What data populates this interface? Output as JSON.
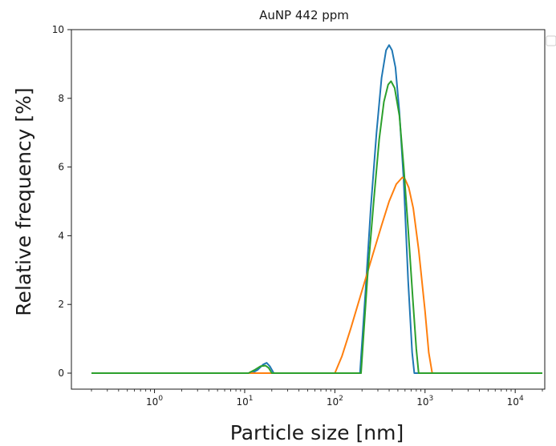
{
  "chart_data": {
    "type": "line",
    "title": "AuNP 442 ppm",
    "xlabel": "Particle size [nm]",
    "ylabel": "Relative frequency [%]",
    "x_scale": "log",
    "xlim": [
      0.2,
      20000
    ],
    "ylim": [
      0,
      10
    ],
    "x_ticks": [
      {
        "value": 1,
        "base": "10",
        "exp": "0"
      },
      {
        "value": 10,
        "base": "10",
        "exp": "1"
      },
      {
        "value": 100,
        "base": "10",
        "exp": "2"
      },
      {
        "value": 1000,
        "base": "10",
        "exp": "3"
      },
      {
        "value": 10000,
        "base": "10",
        "exp": "4"
      }
    ],
    "y_ticks": [
      0,
      2,
      4,
      6,
      8,
      10
    ],
    "grid": false,
    "legend": "top-right (empty)",
    "series": [
      {
        "color": "#1f77b4",
        "x": [
          0.2,
          12,
          14,
          16,
          17.5,
          19,
          21,
          190,
          220,
          250,
          290,
          330,
          370,
          400,
          430,
          470,
          520,
          580,
          650,
          720,
          760,
          20000
        ],
        "y": [
          0,
          0,
          0.1,
          0.25,
          0.3,
          0.2,
          0,
          0,
          2.5,
          4.8,
          7.0,
          8.6,
          9.4,
          9.55,
          9.4,
          8.9,
          7.6,
          5.6,
          2.7,
          0.6,
          0,
          0
        ]
      },
      {
        "color": "#ff7f0e",
        "x": [
          0.2,
          100,
          120,
          150,
          200,
          260,
          330,
          400,
          480,
          560,
          600,
          660,
          740,
          850,
          1000,
          1100,
          1200,
          20000
        ],
        "y": [
          0,
          0,
          0.5,
          1.3,
          2.4,
          3.4,
          4.3,
          5.0,
          5.5,
          5.7,
          5.65,
          5.4,
          4.8,
          3.6,
          1.8,
          0.6,
          0,
          0
        ]
      },
      {
        "color": "#2ca02c",
        "x": [
          0.2,
          11,
          13,
          15,
          17,
          18.5,
          20,
          195,
          230,
          270,
          310,
          350,
          390,
          420,
          460,
          520,
          580,
          650,
          730,
          800,
          850,
          20000
        ],
        "y": [
          0,
          0,
          0.1,
          0.2,
          0.22,
          0.15,
          0,
          0,
          2.8,
          5.0,
          6.8,
          7.9,
          8.4,
          8.5,
          8.3,
          7.5,
          6.0,
          4.2,
          2.2,
          0.7,
          0,
          0
        ]
      }
    ]
  }
}
